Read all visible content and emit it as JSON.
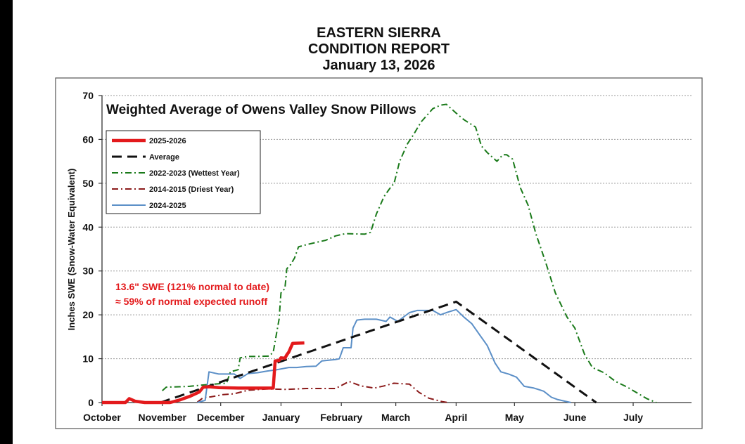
{
  "report": {
    "line1": "EASTERN SIERRA",
    "line2": "CONDITION REPORT",
    "line3": "January 13, 2026"
  },
  "colors": {
    "current": "#e31a1c",
    "average": "#111111",
    "wettest": "#1a7a1a",
    "driest": "#8b1a1a",
    "previous": "#5b8fc7"
  },
  "chart_data": {
    "type": "line",
    "title": "Weighted Average of Owens Valley Snow Pillows",
    "ylabel": "Inches SWE (Snow-Water Equivalent)",
    "xlabel": "",
    "ylim": [
      0,
      70
    ],
    "yticks": [
      0,
      10,
      20,
      30,
      40,
      50,
      60,
      70
    ],
    "x_units": "days since October 1",
    "xlim": [
      0,
      303
    ],
    "month_labels": [
      {
        "label": "October",
        "x": 0
      },
      {
        "label": "November",
        "x": 31
      },
      {
        "label": "December",
        "x": 61
      },
      {
        "label": "January",
        "x": 92
      },
      {
        "label": "February",
        "x": 123
      },
      {
        "label": "March",
        "x": 151
      },
      {
        "label": "April",
        "x": 182
      },
      {
        "label": "May",
        "x": 212
      },
      {
        "label": "June",
        "x": 243
      },
      {
        "label": "July",
        "x": 273
      }
    ],
    "grid": true,
    "legend_position": "top-left",
    "annotation": {
      "line1": "13.6\" SWE (121% normal to date)",
      "line2": "≈ 59% of normal expected runoff"
    },
    "series": [
      {
        "name": "2025-2026",
        "key": "current",
        "style": "solid-thick",
        "points": [
          [
            0,
            0
          ],
          [
            12,
            0
          ],
          [
            14,
            0.9
          ],
          [
            17,
            0.3
          ],
          [
            22,
            0
          ],
          [
            35,
            0
          ],
          [
            40,
            0.6
          ],
          [
            45,
            1.4
          ],
          [
            50,
            2.4
          ],
          [
            52,
            3.5
          ],
          [
            55,
            3.6
          ],
          [
            60,
            3.4
          ],
          [
            70,
            3.3
          ],
          [
            80,
            3.3
          ],
          [
            88,
            3.3
          ],
          [
            89,
            9.5
          ],
          [
            91,
            9.6
          ],
          [
            92,
            10.2
          ],
          [
            94,
            10.1
          ],
          [
            95,
            10.9
          ],
          [
            96,
            11.5
          ],
          [
            98,
            13.5
          ],
          [
            104,
            13.6
          ]
        ]
      },
      {
        "name": "Average",
        "key": "average",
        "style": "dashed",
        "points": [
          [
            30,
            0
          ],
          [
            182,
            23
          ],
          [
            254,
            0
          ]
        ]
      },
      {
        "name": "2022-2023 (Wettest Year)",
        "key": "wettest",
        "style": "dashdot",
        "points": [
          [
            31,
            2.7
          ],
          [
            33,
            3.5
          ],
          [
            40,
            3.6
          ],
          [
            45,
            3.7
          ],
          [
            52,
            4.0
          ],
          [
            60,
            4.3
          ],
          [
            64,
            4.4
          ],
          [
            66,
            7.0
          ],
          [
            70,
            7.5
          ],
          [
            71,
            10.2
          ],
          [
            75,
            10.5
          ],
          [
            80,
            10.5
          ],
          [
            86,
            10.6
          ],
          [
            88,
            11.5
          ],
          [
            91,
            19.0
          ],
          [
            92,
            25.0
          ],
          [
            94,
            26.0
          ],
          [
            95,
            30.5
          ],
          [
            97,
            31.5
          ],
          [
            99,
            33.0
          ],
          [
            101,
            35.5
          ],
          [
            105,
            36.0
          ],
          [
            110,
            36.5
          ],
          [
            115,
            37.0
          ],
          [
            120,
            38.0
          ],
          [
            125,
            38.5
          ],
          [
            135,
            38.4
          ],
          [
            138,
            38.8
          ],
          [
            141,
            43.0
          ],
          [
            145,
            47.0
          ],
          [
            149,
            49.5
          ],
          [
            150,
            49.8
          ],
          [
            153,
            55.0
          ],
          [
            157,
            59.0
          ],
          [
            160,
            61.0
          ],
          [
            164,
            64.0
          ],
          [
            167,
            65.5
          ],
          [
            170,
            67.0
          ],
          [
            174,
            67.8
          ],
          [
            177,
            68.0
          ],
          [
            182,
            66.0
          ],
          [
            186,
            64.5
          ],
          [
            192,
            62.8
          ],
          [
            195,
            58.5
          ],
          [
            198,
            57.0
          ],
          [
            203,
            55.0
          ],
          [
            206,
            56.5
          ],
          [
            208,
            56.5
          ],
          [
            211,
            55.5
          ],
          [
            215,
            49.0
          ],
          [
            219,
            45.0
          ],
          [
            223,
            38.5
          ],
          [
            228,
            32.0
          ],
          [
            233,
            25.0
          ],
          [
            239,
            19.5
          ],
          [
            243,
            17.0
          ],
          [
            248,
            11.0
          ],
          [
            252,
            8.0
          ],
          [
            258,
            6.8
          ],
          [
            264,
            4.8
          ],
          [
            270,
            3.5
          ],
          [
            280,
            0.9
          ],
          [
            285,
            0
          ]
        ]
      },
      {
        "name": "2014-2015 (Driest Year)",
        "key": "driest",
        "style": "dashdot",
        "points": [
          [
            49,
            0.1
          ],
          [
            52,
            1.1
          ],
          [
            56,
            1.3
          ],
          [
            62,
            1.8
          ],
          [
            68,
            2.0
          ],
          [
            75,
            2.8
          ],
          [
            85,
            3.1
          ],
          [
            95,
            3.0
          ],
          [
            105,
            3.2
          ],
          [
            115,
            3.2
          ],
          [
            120,
            3.2
          ],
          [
            127,
            4.8
          ],
          [
            133,
            3.8
          ],
          [
            140,
            3.3
          ],
          [
            145,
            3.8
          ],
          [
            150,
            4.4
          ],
          [
            158,
            4.2
          ],
          [
            163,
            2.3
          ],
          [
            168,
            1.0
          ],
          [
            175,
            0.2
          ],
          [
            178,
            0
          ]
        ]
      },
      {
        "name": "2024-2025",
        "key": "previous",
        "style": "solid",
        "points": [
          [
            49,
            0
          ],
          [
            53,
            0.5
          ],
          [
            55,
            7.0
          ],
          [
            58,
            6.7
          ],
          [
            60,
            6.5
          ],
          [
            64,
            6.5
          ],
          [
            68,
            6.5
          ],
          [
            71,
            5.5
          ],
          [
            75,
            6.6
          ],
          [
            80,
            6.8
          ],
          [
            85,
            7.2
          ],
          [
            90,
            7.5
          ],
          [
            96,
            8.0
          ],
          [
            100,
            8.0
          ],
          [
            105,
            8.2
          ],
          [
            110,
            8.3
          ],
          [
            113,
            9.5
          ],
          [
            120,
            9.8
          ],
          [
            122,
            10.0
          ],
          [
            124,
            12.5
          ],
          [
            128,
            12.5
          ],
          [
            129,
            17.0
          ],
          [
            131,
            18.8
          ],
          [
            135,
            19.0
          ],
          [
            141,
            19.0
          ],
          [
            146,
            18.5
          ],
          [
            148,
            19.5
          ],
          [
            152,
            18.5
          ],
          [
            158,
            20.5
          ],
          [
            162,
            21.0
          ],
          [
            170,
            21.0
          ],
          [
            174,
            20.0
          ],
          [
            177,
            20.5
          ],
          [
            182,
            21.2
          ],
          [
            186,
            19.5
          ],
          [
            190,
            18.0
          ],
          [
            194,
            15.5
          ],
          [
            198,
            13.0
          ],
          [
            202,
            9.0
          ],
          [
            205,
            7.0
          ],
          [
            209,
            6.5
          ],
          [
            213,
            5.8
          ],
          [
            217,
            3.7
          ],
          [
            222,
            3.3
          ],
          [
            227,
            2.6
          ],
          [
            231,
            1.2
          ],
          [
            234,
            0.7
          ],
          [
            238,
            0.3
          ],
          [
            241,
            0
          ]
        ]
      }
    ]
  }
}
